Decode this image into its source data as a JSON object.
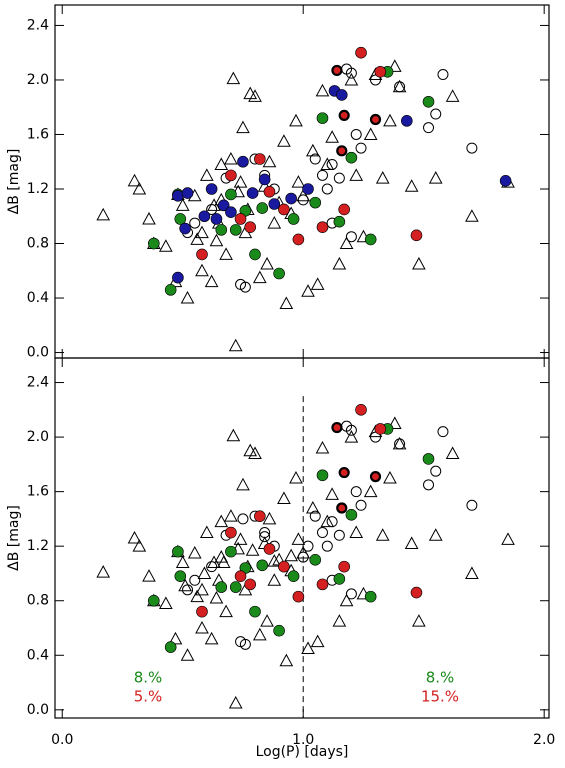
{
  "chart_data": [
    {
      "type": "scatter",
      "ylabel": "ΔB [mag]",
      "xlim": [
        -0.03,
        2.02
      ],
      "ylim": [
        -0.04,
        2.55
      ],
      "xticks": [
        {
          "value": 0,
          "label": "0.0"
        },
        {
          "value": 1,
          "label": "1.0"
        },
        {
          "value": 2,
          "label": "2.0"
        }
      ],
      "yticks": [
        {
          "value": 0,
          "label": "0.0"
        },
        0.4,
        0.8,
        1.2,
        1.6,
        {
          "value": 2,
          "label": "2.0"
        },
        2.4
      ],
      "show_xtick_labels": false,
      "series": [
        {
          "marker": "triangle",
          "color": "#000000",
          "x": [
            0.17,
            0.3,
            0.32,
            0.36,
            0.38,
            0.43,
            0.47,
            0.48,
            0.5,
            0.52,
            0.55,
            0.56,
            0.58,
            0.6,
            0.62,
            0.63,
            0.65,
            0.66,
            0.68,
            0.7,
            0.71,
            0.72,
            0.73,
            0.75,
            0.76,
            0.78,
            0.8,
            0.82,
            0.84,
            0.86,
            0.88,
            0.9,
            0.92,
            0.93,
            0.95,
            0.97,
            0.98,
            1.0,
            1.02,
            1.04,
            1.06,
            1.08,
            1.1,
            1.12,
            1.15,
            1.18,
            1.2,
            1.22,
            1.25,
            1.28,
            1.3,
            1.33,
            1.36,
            1.38,
            1.4,
            1.45,
            1.48,
            1.55,
            1.62,
            1.7,
            1.85,
            0.58,
            0.66,
            0.77,
            0.85,
            0.64,
            0.74
          ],
          "values": [
            1.01,
            1.26,
            1.2,
            0.98,
            0.8,
            0.78,
            0.52,
            1.16,
            1.08,
            0.4,
            1.15,
            0.83,
            0.6,
            1.3,
            0.52,
            1.08,
            0.95,
            1.38,
            0.72,
            1.42,
            2.01,
            0.05,
            1.18,
            1.65,
            0.88,
            1.9,
            1.88,
            0.55,
            1.22,
            1.4,
            0.95,
            1.1,
            1.55,
            0.36,
            1.02,
            1.7,
            1.25,
            1.15,
            0.45,
            1.48,
            0.5,
            1.92,
            1.38,
            1.58,
            0.65,
            0.8,
            2.0,
            1.3,
            0.85,
            1.6,
            2.04,
            1.28,
            1.7,
            2.1,
            1.95,
            1.22,
            0.65,
            1.28,
            1.88,
            1.0,
            1.25,
            0.88,
            1.12,
            1.05,
            0.65,
            0.82,
            1.25
          ]
        },
        {
          "marker": "open-circle",
          "color": "#000000",
          "x": [
            0.52,
            0.55,
            0.62,
            0.68,
            0.74,
            0.76,
            0.8,
            0.84,
            0.88,
            0.92,
            1.0,
            1.05,
            1.08,
            1.1,
            1.12,
            1.15,
            1.18,
            1.2,
            1.22,
            1.24,
            1.3,
            1.4,
            1.52,
            1.55,
            1.58,
            1.7,
            1.12,
            1.2
          ],
          "values": [
            0.88,
            0.95,
            1.05,
            1.28,
            0.5,
            0.48,
            1.42,
            1.3,
            1.2,
            1.05,
            1.12,
            1.42,
            1.3,
            1.2,
            1.38,
            1.28,
            2.08,
            2.05,
            1.6,
            1.5,
            2.0,
            1.95,
            1.65,
            1.75,
            2.04,
            1.5,
            0.95,
            0.85
          ]
        },
        {
          "marker": "filled-circle",
          "color": "#1a8a1a",
          "x": [
            0.38,
            0.45,
            0.48,
            0.49,
            0.66,
            0.7,
            0.72,
            0.8,
            0.83,
            0.9,
            0.96,
            1.05,
            1.08,
            1.15,
            1.2,
            1.28,
            1.35,
            1.52,
            0.76
          ],
          "values": [
            0.8,
            0.46,
            1.16,
            0.98,
            0.9,
            1.16,
            0.9,
            0.72,
            1.06,
            0.58,
            0.98,
            1.1,
            1.72,
            0.96,
            1.43,
            0.83,
            2.06,
            1.84,
            1.04
          ]
        },
        {
          "marker": "filled-circle",
          "color": "#d42020",
          "x": [
            0.58,
            0.7,
            0.78,
            0.82,
            0.86,
            0.92,
            0.98,
            1.08,
            1.17,
            1.24,
            1.32,
            1.47,
            0.74
          ],
          "values": [
            0.72,
            1.3,
            0.92,
            1.42,
            1.18,
            1.05,
            0.83,
            0.92,
            1.05,
            2.2,
            2.06,
            0.86,
            0.98
          ]
        },
        {
          "marker": "ringed-circle",
          "color": "#d42020",
          "x": [
            1.14,
            1.16,
            1.3,
            1.17
          ],
          "values": [
            2.07,
            1.48,
            1.71,
            1.74
          ]
        },
        {
          "marker": "filled-circle",
          "color": "#1a1aa0",
          "x": [
            0.48,
            0.51,
            0.52,
            0.59,
            0.64,
            0.67,
            0.75,
            0.79,
            0.84,
            0.88,
            0.95,
            1.02,
            1.13,
            1.16,
            1.43,
            1.84,
            0.48,
            0.62,
            0.7
          ],
          "values": [
            1.15,
            0.91,
            1.17,
            1.0,
            0.98,
            1.08,
            1.4,
            1.17,
            1.27,
            1.09,
            1.13,
            1.2,
            1.92,
            1.89,
            1.7,
            1.26,
            0.55,
            1.2,
            1.03
          ]
        }
      ]
    },
    {
      "type": "scatter",
      "ylabel": "ΔB [mag]",
      "xlabel": "Log(P) [days]",
      "xlim": [
        -0.03,
        2.02
      ],
      "ylim": [
        -0.06,
        2.58
      ],
      "xticks": [
        {
          "value": 0,
          "label": "0.0"
        },
        {
          "value": 1,
          "label": "1.0"
        },
        {
          "value": 2,
          "label": "2.0"
        }
      ],
      "yticks": [
        {
          "value": 0,
          "label": "0.0"
        },
        0.4,
        0.8,
        1.2,
        1.6,
        {
          "value": 2,
          "label": "2.0"
        },
        2.4
      ],
      "show_xtick_labels": true,
      "vline": {
        "x": 1.0,
        "ymax": 2.3
      },
      "annotations": [
        {
          "text": "8.%",
          "color": "#1a8a1a"
        },
        {
          "text": "5.%",
          "color": "#d42020"
        },
        {
          "text": "8.%",
          "color": "#1a8a1a"
        },
        {
          "text": "15.%",
          "color": "#d42020"
        }
      ],
      "series": [
        {
          "marker": "triangle",
          "color": "#000000",
          "x": [
            0.17,
            0.3,
            0.32,
            0.36,
            0.38,
            0.43,
            0.47,
            0.48,
            0.5,
            0.52,
            0.55,
            0.56,
            0.58,
            0.6,
            0.62,
            0.63,
            0.65,
            0.66,
            0.68,
            0.7,
            0.71,
            0.72,
            0.73,
            0.75,
            0.76,
            0.78,
            0.8,
            0.82,
            0.84,
            0.86,
            0.88,
            0.9,
            0.92,
            0.93,
            0.95,
            0.97,
            0.98,
            1.0,
            1.02,
            1.04,
            1.06,
            1.08,
            1.1,
            1.12,
            1.15,
            1.18,
            1.2,
            1.22,
            1.25,
            1.28,
            1.3,
            1.33,
            1.36,
            1.38,
            1.4,
            1.45,
            1.48,
            1.55,
            1.62,
            1.7,
            1.85,
            0.58,
            0.66,
            0.77,
            0.85,
            0.64,
            0.74,
            0.51,
            0.59,
            0.67,
            0.79,
            0.88,
            0.95
          ],
          "values": [
            1.01,
            1.26,
            1.2,
            0.98,
            0.8,
            0.78,
            0.52,
            1.16,
            1.08,
            0.4,
            1.15,
            0.83,
            0.6,
            1.3,
            0.52,
            1.08,
            0.95,
            1.38,
            0.72,
            1.42,
            2.01,
            0.05,
            1.18,
            1.65,
            0.88,
            1.9,
            1.88,
            0.55,
            1.22,
            1.4,
            0.95,
            1.1,
            1.55,
            0.36,
            1.02,
            1.7,
            1.25,
            1.15,
            0.45,
            1.48,
            0.5,
            1.92,
            1.38,
            1.58,
            0.65,
            0.8,
            2.0,
            1.3,
            0.85,
            1.6,
            2.04,
            1.28,
            1.7,
            2.1,
            1.95,
            1.22,
            0.65,
            1.28,
            1.88,
            1.0,
            1.25,
            0.88,
            1.12,
            1.05,
            0.65,
            0.82,
            1.25,
            0.91,
            1.0,
            1.08,
            1.17,
            1.09,
            1.13
          ]
        },
        {
          "marker": "open-circle",
          "color": "#000000",
          "x": [
            0.52,
            0.55,
            0.62,
            0.68,
            0.74,
            0.76,
            0.8,
            0.84,
            0.88,
            0.92,
            1.0,
            1.05,
            1.08,
            1.1,
            1.12,
            1.15,
            1.18,
            1.2,
            1.22,
            1.24,
            1.3,
            1.4,
            1.52,
            1.55,
            1.58,
            1.7,
            1.12,
            1.2,
            0.75,
            0.84,
            1.02
          ],
          "values": [
            0.88,
            0.95,
            1.05,
            1.28,
            0.5,
            0.48,
            1.42,
            1.3,
            1.2,
            1.05,
            1.12,
            1.42,
            1.3,
            1.2,
            1.38,
            1.28,
            2.08,
            2.05,
            1.6,
            1.5,
            2.0,
            1.95,
            1.65,
            1.75,
            2.04,
            1.5,
            0.95,
            0.85,
            1.4,
            1.27,
            1.2
          ]
        },
        {
          "marker": "filled-circle",
          "color": "#1a8a1a",
          "x": [
            0.38,
            0.45,
            0.48,
            0.49,
            0.66,
            0.7,
            0.72,
            0.8,
            0.83,
            0.9,
            0.96,
            1.05,
            1.08,
            1.15,
            1.2,
            1.28,
            1.35,
            1.52,
            0.76
          ],
          "values": [
            0.8,
            0.46,
            1.16,
            0.98,
            0.9,
            1.16,
            0.9,
            0.72,
            1.06,
            0.58,
            0.98,
            1.1,
            1.72,
            0.96,
            1.43,
            0.83,
            2.06,
            1.84,
            1.04
          ]
        },
        {
          "marker": "filled-circle",
          "color": "#d42020",
          "x": [
            0.58,
            0.7,
            0.78,
            0.82,
            0.86,
            0.92,
            0.98,
            1.08,
            1.17,
            1.24,
            1.32,
            1.47,
            0.74
          ],
          "values": [
            0.72,
            1.3,
            0.92,
            1.42,
            1.18,
            1.05,
            0.83,
            0.92,
            1.05,
            2.2,
            2.06,
            0.86,
            0.98
          ]
        },
        {
          "marker": "ringed-circle",
          "color": "#d42020",
          "x": [
            1.14,
            1.16,
            1.3,
            1.17
          ],
          "values": [
            2.07,
            1.48,
            1.71,
            1.74
          ]
        }
      ]
    }
  ]
}
